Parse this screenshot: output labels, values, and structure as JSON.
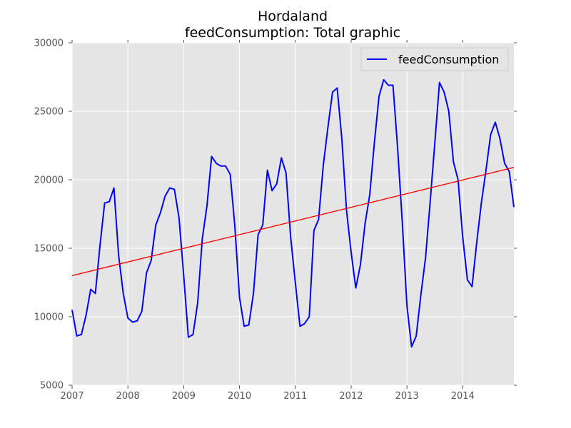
{
  "chart_data": {
    "type": "line",
    "title": "Hordaland",
    "subtitle": "feedConsumption: Total graphic",
    "xlabel": "",
    "ylabel": "",
    "xlim": [
      2007.0,
      2014.9167
    ],
    "ylim": [
      5000,
      30000
    ],
    "x_ticks": [
      2007,
      2008,
      2009,
      2010,
      2011,
      2012,
      2013,
      2014
    ],
    "y_ticks": [
      5000,
      10000,
      15000,
      20000,
      25000,
      30000
    ],
    "grid": true,
    "legend_position": "top-right",
    "background_color": "#e5e5e5",
    "series": [
      {
        "name": "feedConsumption",
        "color": "#0000ff",
        "x": [
          2007.0,
          2007.0833,
          2007.1667,
          2007.25,
          2007.3333,
          2007.4167,
          2007.5,
          2007.5833,
          2007.6667,
          2007.75,
          2007.8333,
          2007.9167,
          2008.0,
          2008.0833,
          2008.1667,
          2008.25,
          2008.3333,
          2008.4167,
          2008.5,
          2008.5833,
          2008.6667,
          2008.75,
          2008.8333,
          2008.9167,
          2009.0,
          2009.0833,
          2009.1667,
          2009.25,
          2009.3333,
          2009.4167,
          2009.5,
          2009.5833,
          2009.6667,
          2009.75,
          2009.8333,
          2009.9167,
          2010.0,
          2010.0833,
          2010.1667,
          2010.25,
          2010.3333,
          2010.4167,
          2010.5,
          2010.5833,
          2010.6667,
          2010.75,
          2010.8333,
          2010.9167,
          2011.0,
          2011.0833,
          2011.1667,
          2011.25,
          2011.3333,
          2011.4167,
          2011.5,
          2011.5833,
          2011.6667,
          2011.75,
          2011.8333,
          2011.9167,
          2012.0,
          2012.0833,
          2012.1667,
          2012.25,
          2012.3333,
          2012.4167,
          2012.5,
          2012.5833,
          2012.6667,
          2012.75,
          2012.8333,
          2012.9167,
          2013.0,
          2013.0833,
          2013.1667,
          2013.25,
          2013.3333,
          2013.4167,
          2013.5,
          2013.5833,
          2013.6667,
          2013.75,
          2013.8333,
          2013.9167,
          2014.0,
          2014.0833,
          2014.1667,
          2014.25,
          2014.3333,
          2014.4167,
          2014.5,
          2014.5833,
          2014.6667,
          2014.75,
          2014.8333,
          2014.9167
        ],
        "y": [
          10500,
          8600,
          8700,
          10100,
          12000,
          11700,
          15200,
          18300,
          18400,
          19400,
          14500,
          11700,
          9900,
          9600,
          9700,
          10400,
          13200,
          14100,
          16700,
          17600,
          18800,
          19400,
          19300,
          17200,
          13000,
          8500,
          8700,
          11000,
          15700,
          18100,
          21700,
          21200,
          21000,
          21000,
          20400,
          16600,
          11400,
          9300,
          9400,
          11700,
          16000,
          16700,
          20700,
          19200,
          19700,
          21600,
          20500,
          15800,
          12500,
          9300,
          9500,
          10000,
          16300,
          17100,
          21000,
          23800,
          26400,
          26700,
          23000,
          17800,
          14700,
          12100,
          13800,
          16800,
          18900,
          22700,
          26100,
          27300,
          26900,
          26900,
          22300,
          16900,
          10800,
          7800,
          8600,
          11600,
          14300,
          18400,
          22700,
          27100,
          26400,
          25000,
          21300,
          20000,
          15800,
          12700,
          12200,
          15400,
          18300,
          20700,
          23300,
          24200,
          23000,
          21200,
          20600,
          18000
        ]
      },
      {
        "name": "",
        "color": "#ff0000",
        "x": [
          2007.0,
          2014.9167
        ],
        "y": [
          13000,
          20900
        ]
      }
    ]
  }
}
